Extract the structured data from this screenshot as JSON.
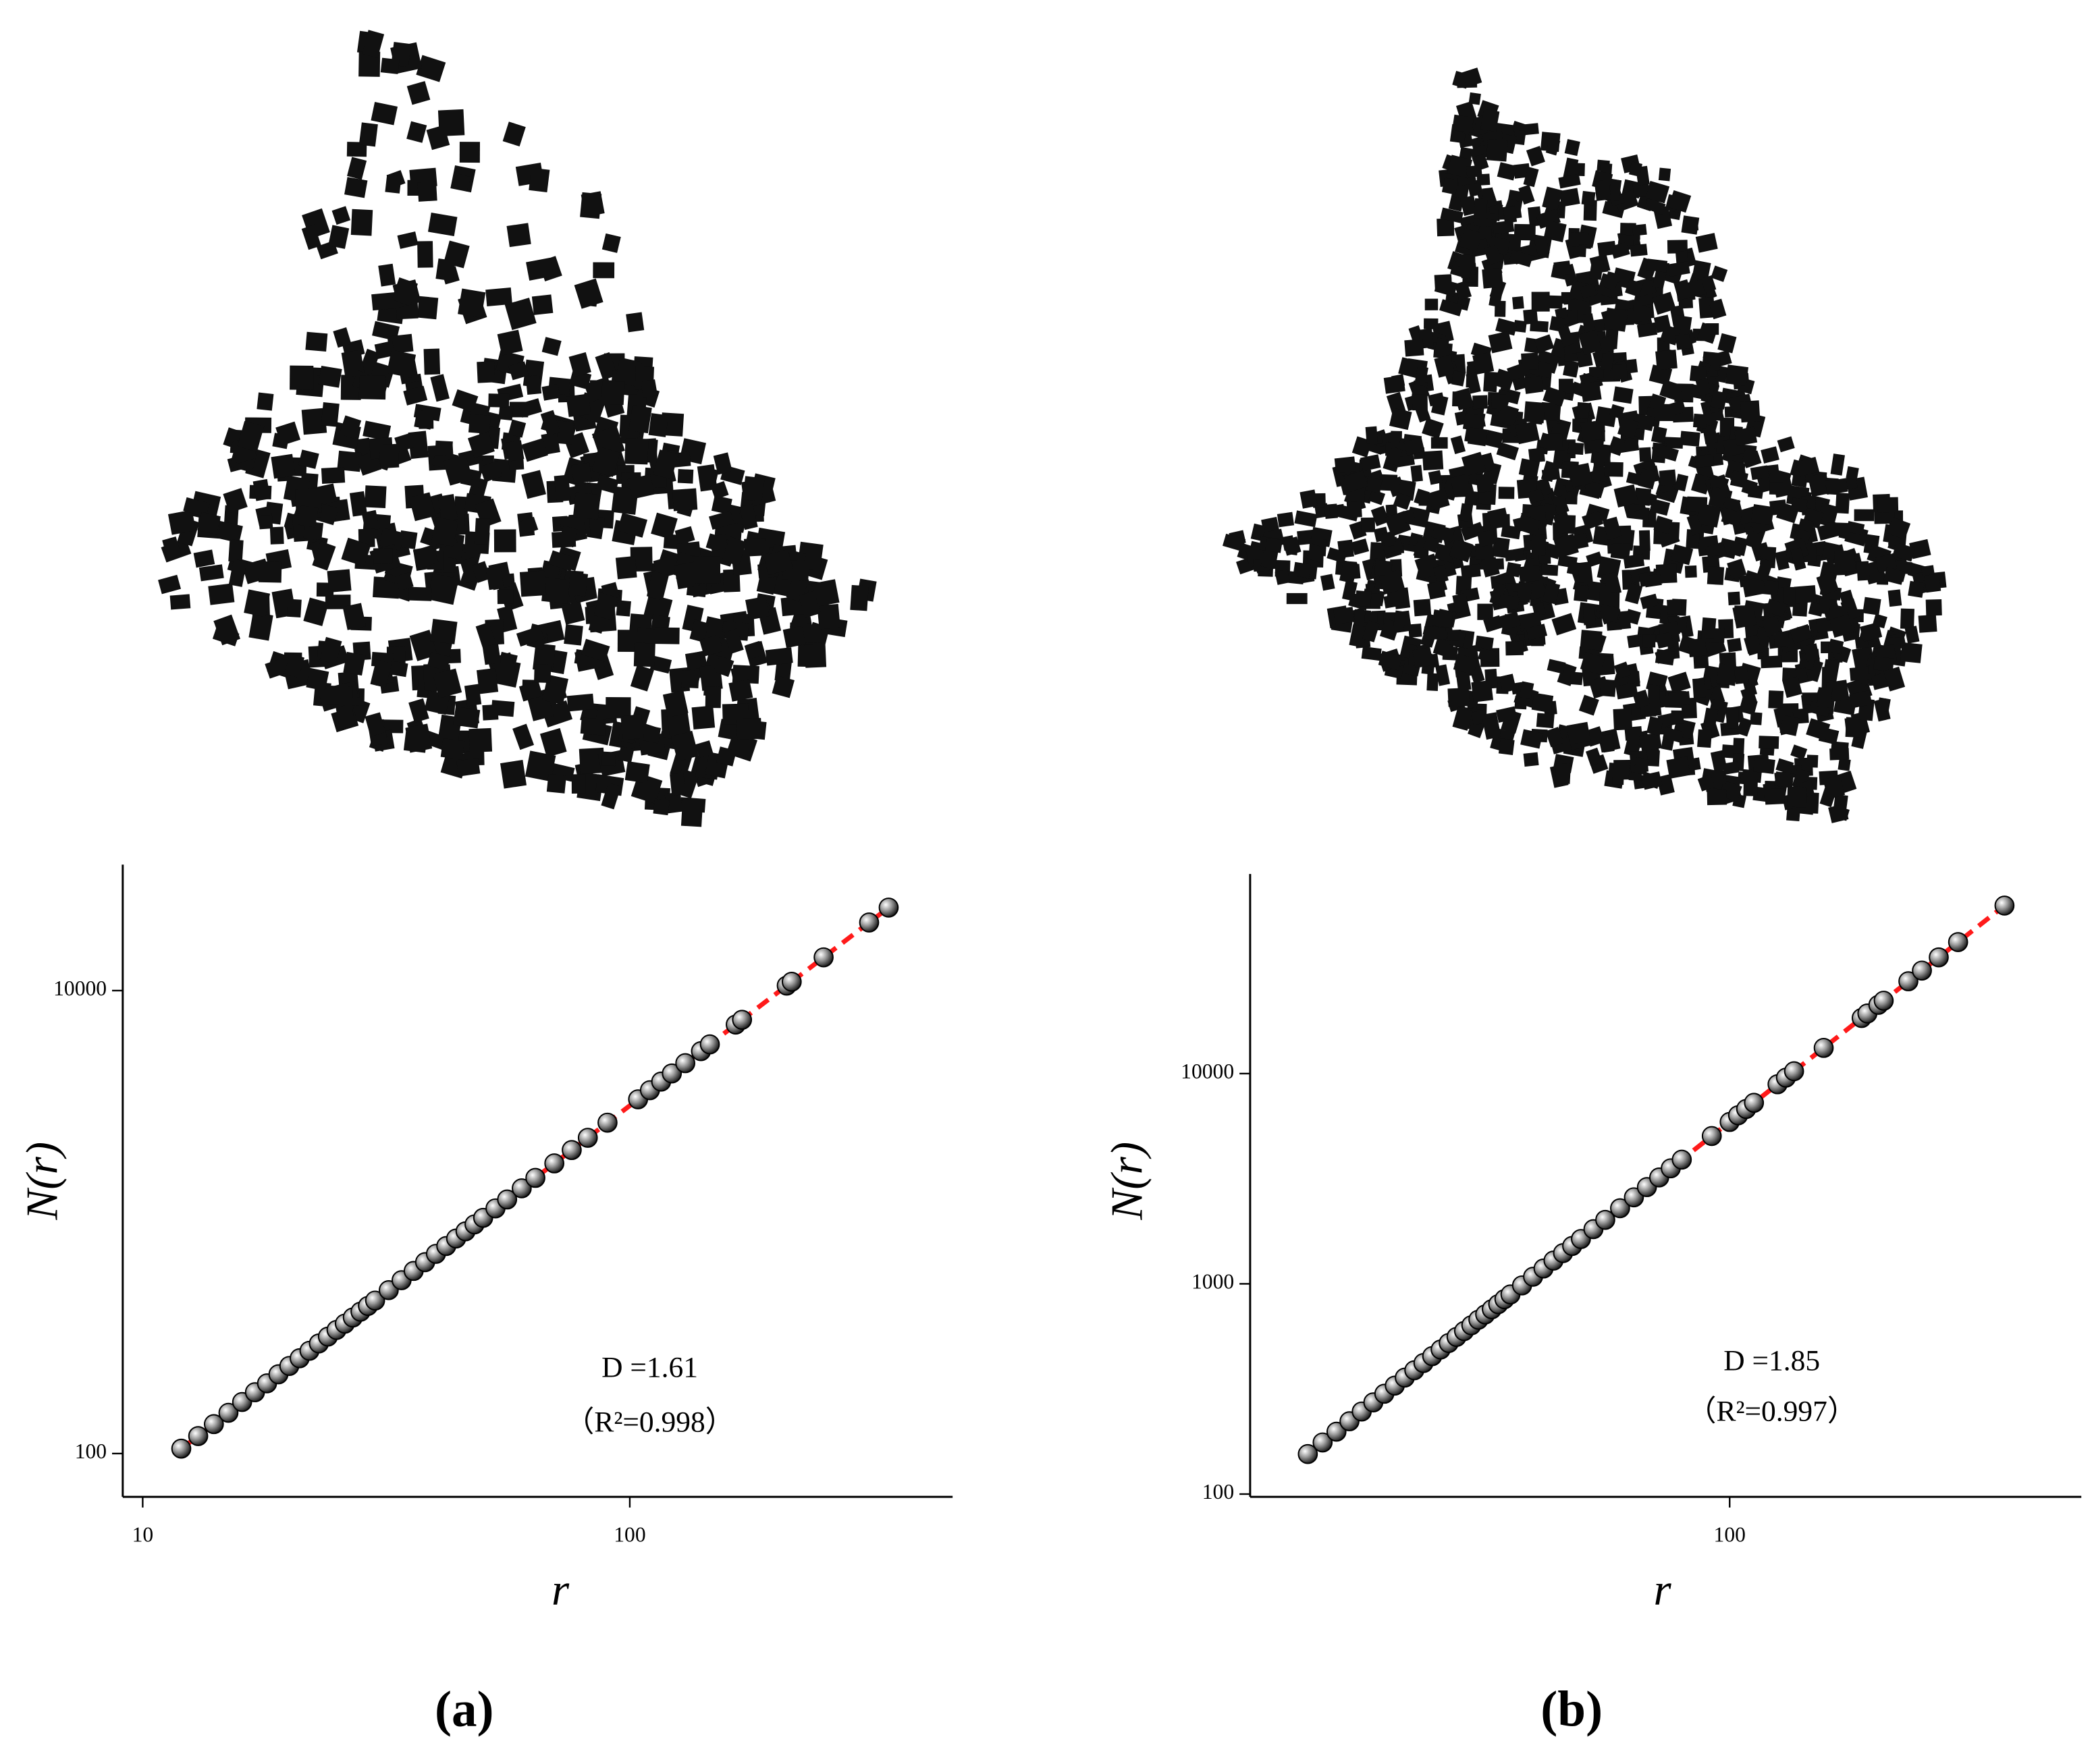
{
  "chart_data": [
    {
      "type": "scatter",
      "panel_label": "(a)",
      "x_label": "r",
      "y_label": "N(r)",
      "annotations": [
        "D =1.61",
        "（R²=0.998）"
      ],
      "x": [
        12,
        13,
        14,
        15,
        16,
        17,
        18,
        19,
        20,
        21,
        22,
        23,
        24,
        25,
        26,
        27,
        28,
        29,
        30,
        32,
        34,
        36,
        38,
        40,
        42,
        44,
        46,
        48,
        50,
        53,
        56,
        60,
        64,
        70,
        76,
        82,
        90,
        104,
        110,
        116,
        122,
        130,
        140,
        146,
        165,
        170,
        210,
        215,
        250,
        310,
        340
      ],
      "y": [
        105,
        119,
        134,
        150,
        167,
        184,
        201,
        220,
        239,
        258,
        278,
        299,
        320,
        342,
        364,
        387,
        410,
        434,
        458,
        508,
        561,
        615,
        671,
        729,
        788,
        849,
        912,
        977,
        1043,
        1146,
        1252,
        1399,
        1552,
        1793,
        2047,
        2313,
        2688,
        3391,
        3713,
        4045,
        4387,
        4858,
        5474,
        5858,
        7132,
        7480,
        10510,
        10920,
        13920,
        19690,
        22840
      ],
      "xlim": [
        9.1,
        460
      ],
      "ylim": [
        65,
        35000
      ],
      "xticks": [
        10,
        100
      ],
      "yticks": [
        100,
        10000
      ],
      "log_x": true,
      "log_y": true,
      "color": "#9a9a9a",
      "fit_line_color": "#ff1a1a"
    },
    {
      "type": "scatter",
      "panel_label": "(b)",
      "x_label": "r",
      "y_label": "N(r)",
      "annotations": [
        "D =1.85",
        "（R²=0.997）"
      ],
      "x": [
        14,
        15,
        16,
        17,
        18,
        19,
        20,
        21,
        22,
        23,
        24,
        25,
        26,
        27,
        28,
        29,
        30,
        31,
        32,
        33,
        34,
        35,
        36,
        38,
        40,
        42,
        44,
        46,
        48,
        50,
        53,
        56,
        60,
        64,
        68,
        72,
        76,
        80,
        92,
        100,
        104,
        108,
        112,
        125,
        130,
        135,
        155,
        185,
        190,
        200,
        205,
        230,
        245,
        265,
        290,
        360
      ],
      "y": [
        155,
        176,
        198,
        222,
        247,
        273,
        300,
        328,
        358,
        388,
        420,
        453,
        487,
        523,
        559,
        596,
        635,
        675,
        715,
        757,
        800,
        845,
        890,
        983,
        1081,
        1183,
        1290,
        1400,
        1514,
        1634,
        1820,
        2015,
        2289,
        2579,
        2885,
        3206,
        3544,
        3897,
        5047,
        5888,
        6332,
        6787,
        7261,
        8897,
        9566,
        10260,
        13250,
        18380,
        19310,
        21230,
        22220,
        27490,
        30900,
        35720,
        42220,
        62980
      ],
      "xlim": [
        10.7,
        515
      ],
      "ylim": [
        97,
        89000
      ],
      "xticks": [
        100
      ],
      "yticks": [
        100,
        1000,
        10000
      ],
      "log_x": true,
      "log_y": true,
      "color": "#9a9a9a",
      "fit_line_color": "#ff1a1a"
    }
  ]
}
